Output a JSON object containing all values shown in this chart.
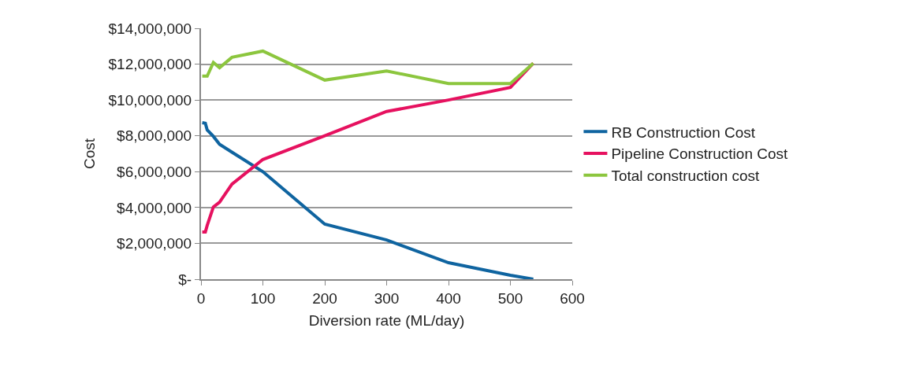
{
  "chart_data": {
    "type": "line",
    "x": [
      2,
      7,
      10,
      20,
      30,
      50,
      100,
      200,
      300,
      400,
      500,
      537
    ],
    "series": [
      {
        "name": "RB Construction Cost",
        "color": "#0f64a0",
        "values": [
          8730000,
          8700000,
          8330000,
          7970000,
          7530000,
          7090000,
          6000000,
          3070000,
          2190000,
          920000,
          220000,
          0
        ]
      },
      {
        "name": "Pipeline Construction Cost",
        "color": "#e6115f",
        "values": [
          2630000,
          2630000,
          3000000,
          4030000,
          4300000,
          5300000,
          6680000,
          8000000,
          9360000,
          10000000,
          10700000,
          12050000
        ]
      },
      {
        "name": "Total construction cost",
        "color": "#8cc63e",
        "values": [
          11330000,
          11330000,
          11330000,
          12090000,
          11800000,
          12380000,
          12730000,
          11110000,
          11620000,
          10920000,
          10920000,
          12050000
        ]
      }
    ],
    "xlabel": "Diversion rate (ML/day)",
    "ylabel": "Cost",
    "xlim": [
      0,
      600
    ],
    "xticks": [
      0,
      100,
      200,
      300,
      400,
      500,
      600
    ],
    "ylim": [
      0,
      14000000
    ],
    "yticks": [
      {
        "value": 0,
        "label": "$-"
      },
      {
        "value": 2000000,
        "label": "$2,000,000"
      },
      {
        "value": 4000000,
        "label": "$4,000,000"
      },
      {
        "value": 6000000,
        "label": "$6,000,000"
      },
      {
        "value": 8000000,
        "label": "$8,000,000"
      },
      {
        "value": 10000000,
        "label": "$10,000,000"
      },
      {
        "value": 12000000,
        "label": "$12,000,000"
      },
      {
        "value": 14000000,
        "label": "$14,000,000"
      }
    ],
    "grid": "y",
    "legend": "right",
    "marker": "none",
    "line_style": "solid"
  }
}
